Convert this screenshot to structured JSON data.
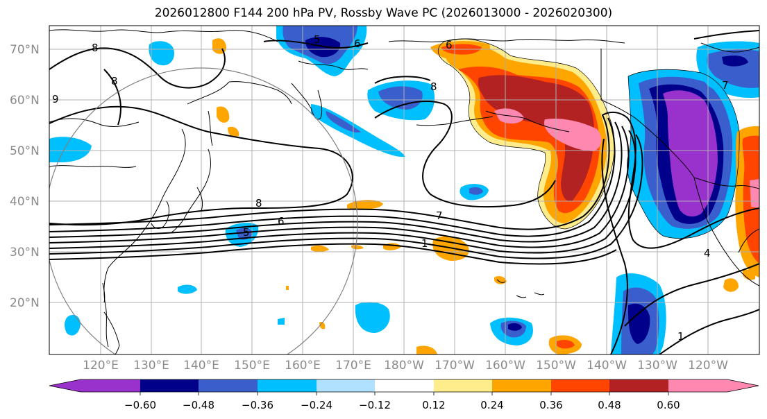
{
  "title": "2026012800 F144 200 hPa PV, Rossby Wave PC (2026013000 - 2026020300)",
  "lat_labels": [
    "70°N",
    "60°N",
    "50°N",
    "40°N",
    "30°N",
    "20°N"
  ],
  "lon_labels": [
    "120°E",
    "130°E",
    "140°E",
    "150°E",
    "160°E",
    "170°E",
    "180°W",
    "170°W",
    "160°W",
    "150°W",
    "140°W",
    "130°W",
    "120°W"
  ],
  "contour_labels": [
    "8",
    "8",
    "9",
    "5",
    "6",
    "8",
    "8",
    "6",
    "7",
    "1",
    "6",
    "7",
    "4",
    "1",
    "5"
  ],
  "colorbar": {
    "tick_labels": [
      "−0.60",
      "−0.48",
      "−0.36",
      "−0.24",
      "−0.12",
      "0.12",
      "0.24",
      "0.36",
      "0.48",
      "0.60"
    ],
    "colors": [
      "#9932cc",
      "#00008b",
      "#3a5fcd",
      "#00bfff",
      "#b0e2ff",
      "#ffffff",
      "#ffec8b",
      "#ffa500",
      "#ff4500",
      "#b22222",
      "#ff88b0"
    ]
  }
}
